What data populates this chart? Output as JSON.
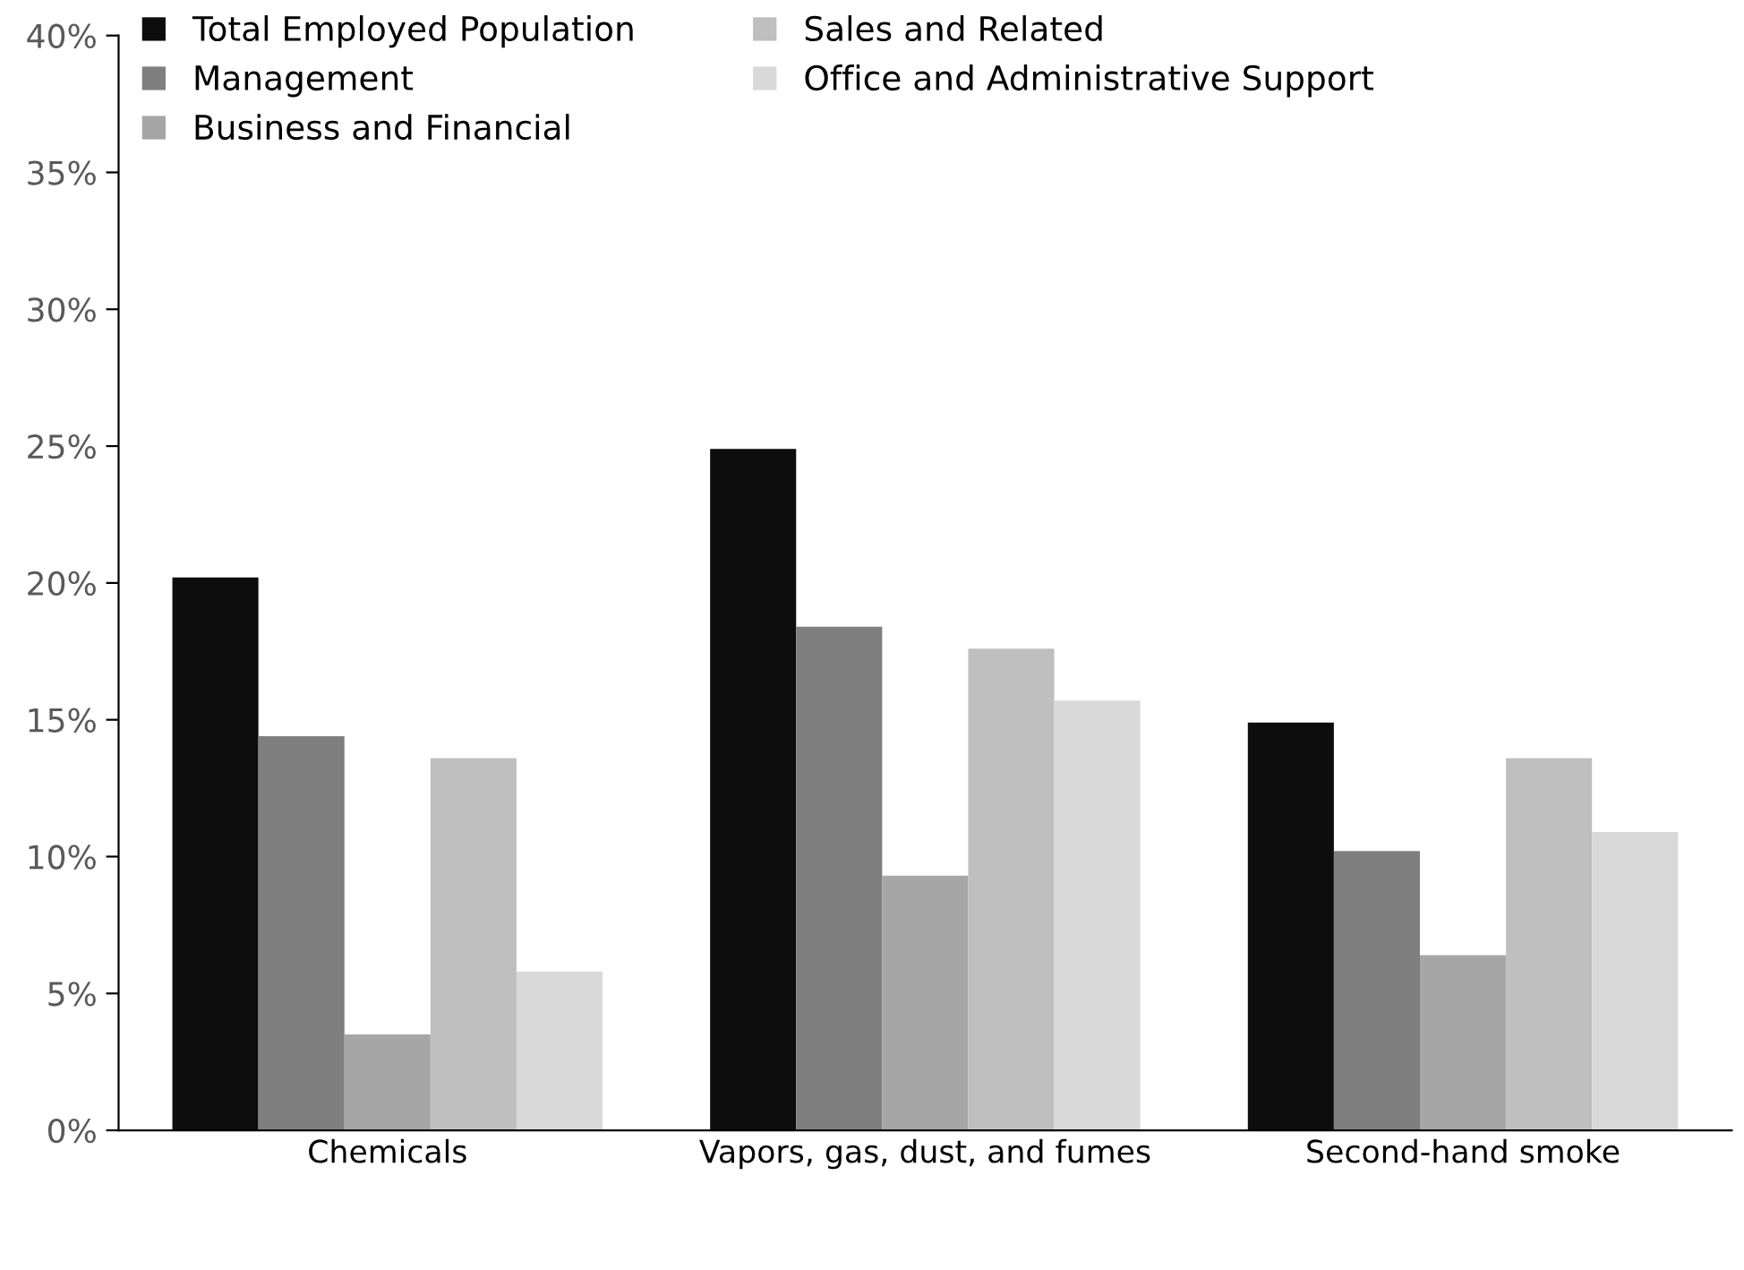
{
  "chart_data": {
    "type": "bar",
    "categories": [
      "Chemicals",
      "Vapors, gas, dust, and fumes",
      "Second-hand smoke"
    ],
    "series": [
      {
        "name": "Total Employed Population",
        "color": "#0d0d0d",
        "values": [
          20.2,
          24.9,
          14.9
        ]
      },
      {
        "name": "Management",
        "color": "#7f7f7f",
        "values": [
          14.4,
          18.4,
          10.2
        ]
      },
      {
        "name": "Business and Financial",
        "color": "#a6a6a6",
        "values": [
          3.5,
          9.3,
          6.4
        ]
      },
      {
        "name": "Sales and Related",
        "color": "#bfbfbf",
        "values": [
          13.6,
          17.6,
          13.6
        ]
      },
      {
        "name": "Office and Administrative Support",
        "color": "#d9d9d9",
        "values": [
          5.8,
          15.7,
          10.9
        ]
      }
    ],
    "ylim": [
      0,
      40
    ],
    "yticks": [
      {
        "value": 0,
        "label": "0%"
      },
      {
        "value": 5,
        "label": "5%"
      },
      {
        "value": 10,
        "label": "10%"
      },
      {
        "value": 15,
        "label": "15%"
      },
      {
        "value": 20,
        "label": "20%"
      },
      {
        "value": 25,
        "label": "25%"
      },
      {
        "value": 30,
        "label": "30%"
      },
      {
        "value": 35,
        "label": "35%"
      },
      {
        "value": 40,
        "label": "40%"
      }
    ],
    "grid": false,
    "legend": "top left"
  }
}
